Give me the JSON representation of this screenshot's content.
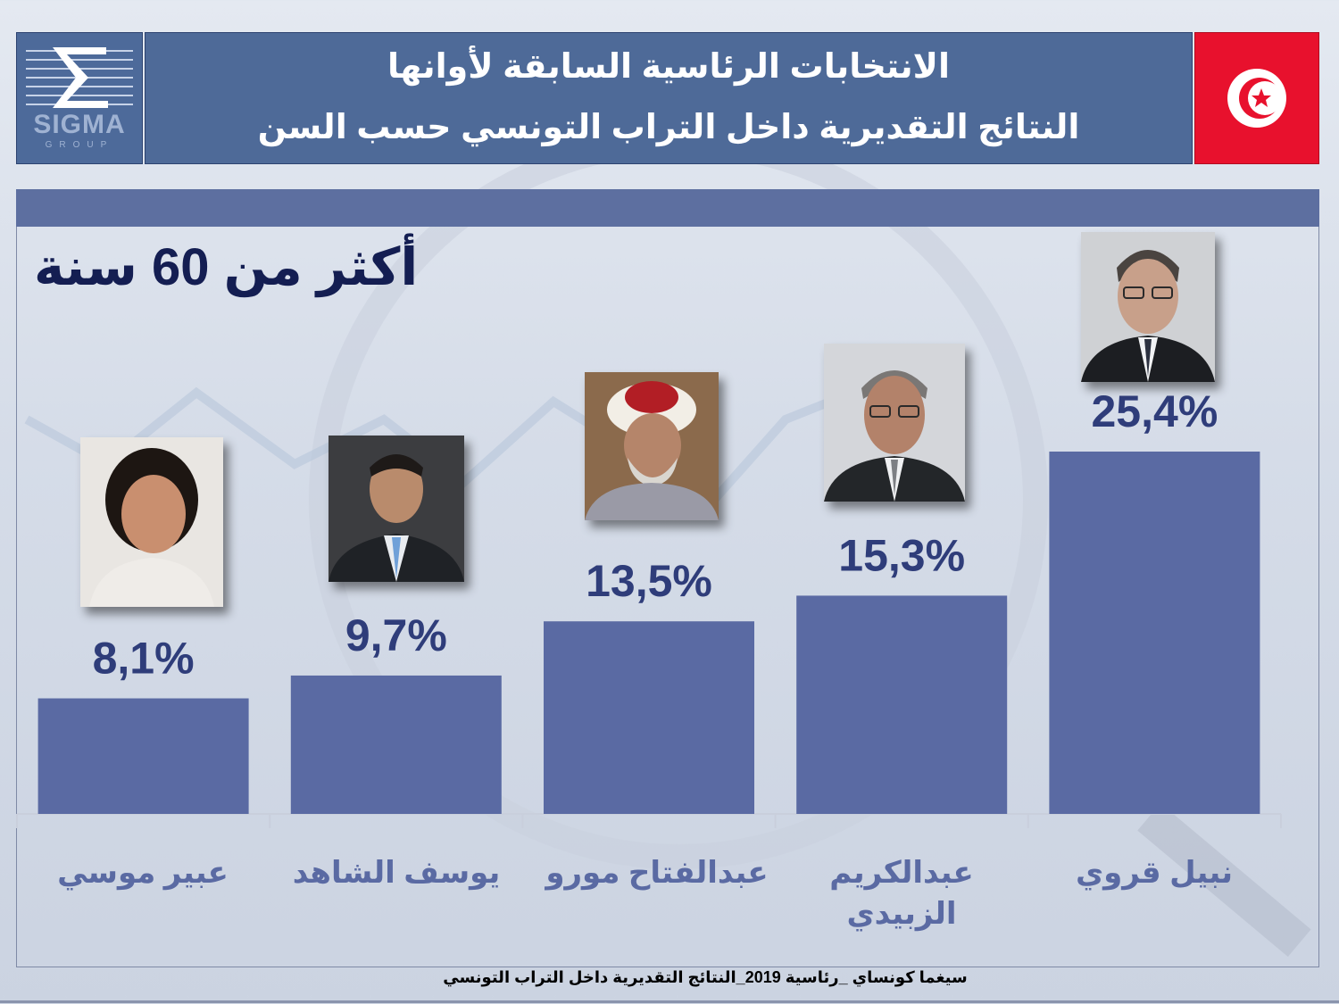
{
  "header": {
    "logo_text": "SIGMA",
    "logo_sub": "GROUP",
    "title_line1": "الانتخابات الرئاسية السابقة لأوانها",
    "title_line2": "النتائج التقديرية داخل التراب التونسي حسب السن"
  },
  "colors": {
    "bar": "#5a6aa3",
    "value_text": "#2f3d7a",
    "name_text": "#5a6aa3",
    "header_bg": "#4e6a98",
    "flag_red": "#e8112d"
  },
  "chart_data": {
    "type": "bar",
    "title": "أكثر من 60 سنة",
    "categories": [
      "عبير موسي",
      "يوسف الشاهد",
      "عبدالفتاح مورو",
      "عبدالكريم الزبيدي",
      "نبيل قروي"
    ],
    "values": [
      8.1,
      9.7,
      13.5,
      15.3,
      25.4
    ],
    "value_labels": [
      "8,1%",
      "9,7%",
      "13,5%",
      "15,3%",
      "25,4%"
    ],
    "unit": "%",
    "ylim": [
      0,
      25.4
    ],
    "grid": false,
    "legend": "none"
  },
  "candidates": [
    {
      "name": "عبير موسي",
      "photo_icon": "portrait-woman-icon"
    },
    {
      "name": "يوسف الشاهد",
      "photo_icon": "portrait-man-suit-icon"
    },
    {
      "name": "عبدالفتاح مورو",
      "photo_icon": "portrait-man-turban-icon"
    },
    {
      "name": "عبدالكريم الزبيدي",
      "photo_icon": "portrait-man-glasses-icon"
    },
    {
      "name": "نبيل قروي",
      "photo_icon": "portrait-man-glasses-icon"
    }
  ],
  "footer": {
    "source": "سيغما كونساي _رئاسية 2019_النتائج التقديرية داخل التراب التونسي"
  }
}
